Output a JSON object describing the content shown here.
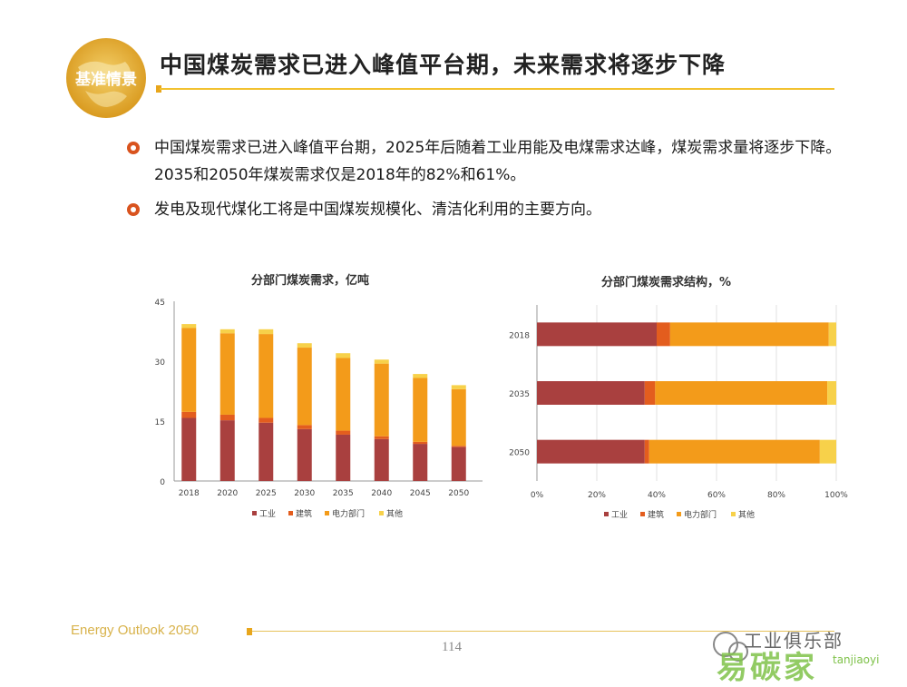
{
  "header": {
    "logo_text": "基准情景",
    "title": "中国煤炭需求已进入峰值平台期，未来需求将逐步下降"
  },
  "bullets": [
    {
      "text": "中国煤炭需求已进入峰值平台期，2025年后随着工业用能及电煤需求达峰，煤炭需求量将逐步下降。2035和2050年煤炭需求仅是2018年的82%和61%。"
    },
    {
      "text": "发电及现代煤化工将是中国煤炭规模化、清洁化利用的主要方向。"
    }
  ],
  "colors": {
    "industry": "#a9403f",
    "building": "#e35d1e",
    "power": "#f39b1a",
    "other": "#f7d14a",
    "accent": "#f2c230"
  },
  "chart_data": [
    {
      "type": "bar",
      "stacked": true,
      "title": "分部门煤炭需求，亿吨",
      "categories": [
        "2018",
        "2020",
        "2025",
        "2030",
        "2035",
        "2040",
        "2045",
        "2050"
      ],
      "ylim": [
        0,
        45
      ],
      "yticks": [
        "0",
        "15",
        "30",
        "45"
      ],
      "grid": false,
      "legend_position": "bottom",
      "series": [
        {
          "name": "工业",
          "values": [
            15.8,
            15.2,
            14.6,
            13.0,
            11.6,
            10.5,
            9.3,
            8.5
          ]
        },
        {
          "name": "建筑",
          "values": [
            1.5,
            1.4,
            1.2,
            1.0,
            1.0,
            0.7,
            0.5,
            0.3
          ]
        },
        {
          "name": "电力部门",
          "values": [
            21.0,
            20.4,
            21.0,
            19.4,
            18.2,
            18.2,
            16.0,
            14.2
          ]
        },
        {
          "name": "其他",
          "values": [
            1.0,
            1.0,
            1.2,
            1.1,
            1.2,
            1.0,
            1.0,
            1.0
          ]
        }
      ]
    },
    {
      "type": "bar",
      "orientation": "horizontal",
      "stacked": true,
      "title": "分部门煤炭需求结构，%",
      "categories": [
        "2018",
        "2035",
        "2050"
      ],
      "xlim": [
        0,
        100
      ],
      "xticks": [
        "0%",
        "20%",
        "40%",
        "60%",
        "80%",
        "100%"
      ],
      "grid": true,
      "legend_position": "bottom",
      "series": [
        {
          "name": "工业",
          "values": [
            40,
            36,
            36
          ]
        },
        {
          "name": "建筑",
          "values": [
            4.5,
            3.5,
            1.5
          ]
        },
        {
          "name": "电力部门",
          "values": [
            53,
            57.5,
            57
          ]
        },
        {
          "name": "其他",
          "values": [
            2.5,
            3,
            5.5
          ]
        }
      ]
    }
  ],
  "footer": {
    "brand": "Energy Outlook 2050",
    "page_number": "114",
    "watermark_1": "工业俱乐部",
    "watermark_2": "易碳家",
    "watermark_3": "tanjiaoyi"
  }
}
